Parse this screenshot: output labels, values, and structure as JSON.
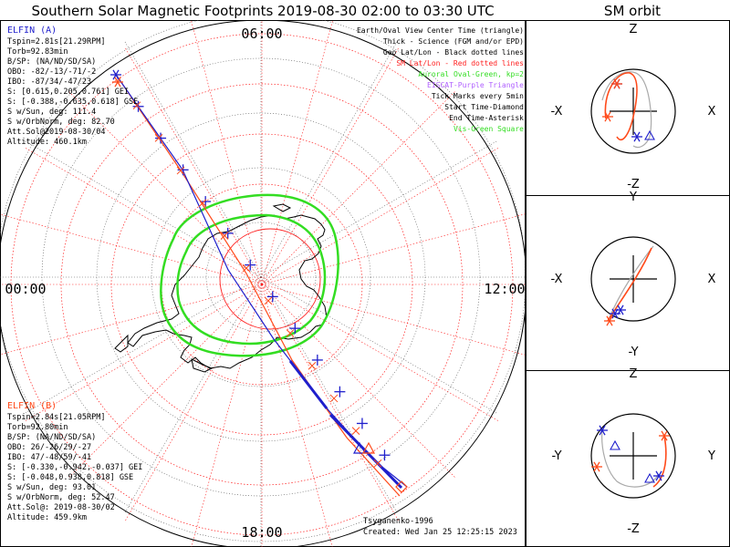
{
  "title": "Southern Solar Magnetic Footprints 2019-08-30 02:00 to 03:30 UTC",
  "orbit_title": "SM orbit",
  "colors": {
    "elfin_a": "#1f1fcc",
    "elfin_b": "#ff4a1a",
    "aurora": "#33dd22",
    "grid_sm": "#ff2020",
    "grid_geo": "#000000",
    "eiscat": "#b060ff",
    "vis_green": "#33dd22"
  },
  "clock_labels": {
    "top": "06:00",
    "left": "00:00",
    "right": "12:00",
    "bottom": "18:00"
  },
  "legend": [
    {
      "text": "Earth/Oval View Center Time (triangle)",
      "color": "#000000"
    },
    {
      "text": "Thick - Science (FGM and/or EPD)",
      "color": "#000000"
    },
    {
      "text": "Geo Lat/Lon - Black dotted lines",
      "color": "#000000"
    },
    {
      "text": "SM Lat/Lon - Red dotted lines",
      "color": "#ff2020"
    },
    {
      "text": "Auroral Oval-Green, kp=2",
      "color": "#33dd22"
    },
    {
      "text": "EISCAT-Purple Triangle",
      "color": "#b060ff"
    },
    {
      "text": "Tick Marks every 5min",
      "color": "#000000"
    },
    {
      "text": "Start Time-Diamond",
      "color": "#000000"
    },
    {
      "text": "End Time-Asterisk",
      "color": "#000000"
    },
    {
      "text": "Vis-Green Square",
      "color": "#33dd22"
    }
  ],
  "elfin_a": {
    "label": "ELFIN (A)",
    "lines": [
      "Tspin=2.81s[21.29RPM]",
      "Torb=92.83min",
      "B/SP: (NA/ND/SD/SA)",
      "OBO: -82/-13/-71/-2",
      "IBO: -87/34/-47/23",
      "S: [0.615,0.205,0.761] GEI",
      "S: [-0.388,-0.635,0.618] GSE",
      "S w/Sun, deg: 111.4",
      "S w/OrbNorm, deg: 82.70",
      "Att.Sol@2019-08-30/04",
      "Altitude: 460.1km"
    ]
  },
  "elfin_b": {
    "label": "ELFIN (B)",
    "lines": [
      "Tspin=2.84s[21.05RPM]",
      "Torb=92.80min",
      "B/SP: (NA/ND/SD/SA)",
      "OBO: 26/-26/29/-27",
      "IBO: 47/-48/59/-41",
      "S: [-0.330,-0.942,-0.037] GEI",
      "S: [-0.048,0.938,0.818] GSE",
      "S w/Sun, deg: 93.01",
      "S w/OrbNorm, deg: 52.47",
      "Att.Sol@: 2019-08-30/02",
      "Altitude: 459.9km"
    ]
  },
  "credit": "Tsyganenko-1996",
  "created": "Created: Wed Jan 25 12:25:15 2023",
  "orbit_panels": [
    {
      "top": "Z",
      "bottom": "-Z",
      "left": "-X",
      "right": "X"
    },
    {
      "top": "Y",
      "bottom": "-Y",
      "left": "-X",
      "right": "X"
    },
    {
      "top": "Z",
      "bottom": "-Z",
      "left": "-Y",
      "right": "Y"
    }
  ],
  "chart_data": {
    "type": "polar-map",
    "sm_latitude_rings_deg": [
      -80,
      -70,
      -60,
      -50
    ],
    "mlt_labels": [
      "00:00",
      "06:00",
      "12:00",
      "18:00"
    ],
    "aurora_kp": 2,
    "elfin_a_tick_count": 13,
    "elfin_b_tick_count": 13
  }
}
